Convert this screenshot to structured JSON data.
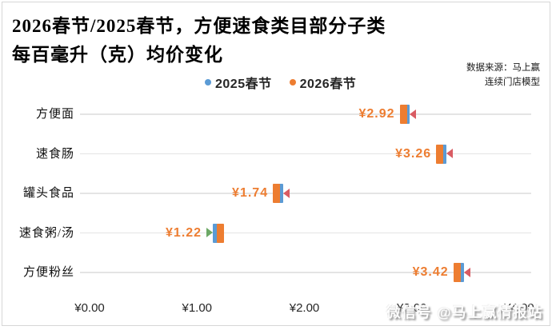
{
  "title": {
    "line1": "2026春节/2025春节，方便速食类目部分子类",
    "line2": "每百毫升（克）均价变化"
  },
  "source": {
    "line1": "数据来源：马上赢",
    "line2": "连续门店模型"
  },
  "watermark": "微信号 @马上赢情报站",
  "colors": {
    "blue_2025": "#5B9BD5",
    "orange_2026": "#ED7D31",
    "decrease_arrow": "#D95C63",
    "increase_arrow": "#6CA865",
    "gridline": "#e4e4e4"
  },
  "chart_data": {
    "type": "scatter",
    "subtype": "dumbbell-dot-plot",
    "title": "2026春节/2025春节，方便速食类目部分子类每百毫升（克）均价变化",
    "categories": [
      "方便面",
      "速食肠",
      "罐头食品",
      "速食粥/汤",
      "方便粉丝"
    ],
    "series": [
      {
        "name": "2025春节",
        "color": "#5B9BD5",
        "values": [
          2.96,
          3.3,
          1.78,
          1.17,
          3.46
        ]
      },
      {
        "name": "2026春节",
        "color": "#ED7D31",
        "values": [
          2.92,
          3.26,
          1.74,
          1.22,
          3.42
        ]
      }
    ],
    "point_labels": [
      "¥2.92",
      "¥3.26",
      "¥1.74",
      "¥1.22",
      "¥3.42"
    ],
    "change": [
      "decrease",
      "decrease",
      "decrease",
      "increase",
      "decrease"
    ],
    "x_ticks": [
      {
        "label": "¥0.00",
        "value": 0
      },
      {
        "label": "¥1.00",
        "value": 1
      },
      {
        "label": "¥2.00",
        "value": 2
      },
      {
        "label": "¥3.00",
        "value": 3
      },
      {
        "label": "¥4.00",
        "value": 4
      }
    ],
    "xlim": [
      0,
      4.1
    ],
    "legend_position": "top-center",
    "grid": "horizontal-row-lines"
  }
}
